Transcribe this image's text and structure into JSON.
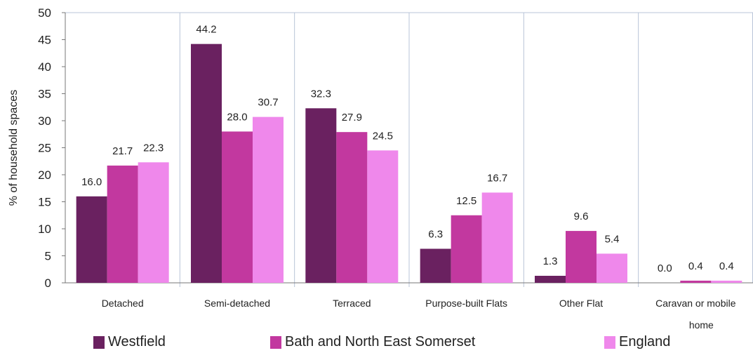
{
  "chart_data": {
    "type": "bar",
    "title": "",
    "xlabel": "",
    "ylabel": "% of household spaces",
    "ylim": [
      0,
      50
    ],
    "yticks": [
      0,
      5,
      10,
      15,
      20,
      25,
      30,
      35,
      40,
      45,
      50
    ],
    "grid": "vertical separators between categories",
    "legend_position": "bottom",
    "categories": [
      "Detached",
      "Semi-detached",
      "Terraced",
      "Purpose-built Flats",
      "Other Flat",
      "Caravan or mobile home"
    ],
    "series": [
      {
        "name": "Westfield",
        "color": "#6a2160",
        "values": [
          16.0,
          44.2,
          32.3,
          6.3,
          1.3,
          0.0
        ]
      },
      {
        "name": "Bath and North East Somerset",
        "color": "#c2389f",
        "values": [
          21.7,
          28.0,
          27.9,
          12.5,
          9.6,
          0.4
        ]
      },
      {
        "name": "England",
        "color": "#ef88eb",
        "values": [
          22.3,
          30.7,
          24.5,
          16.7,
          5.4,
          0.4
        ]
      }
    ]
  }
}
